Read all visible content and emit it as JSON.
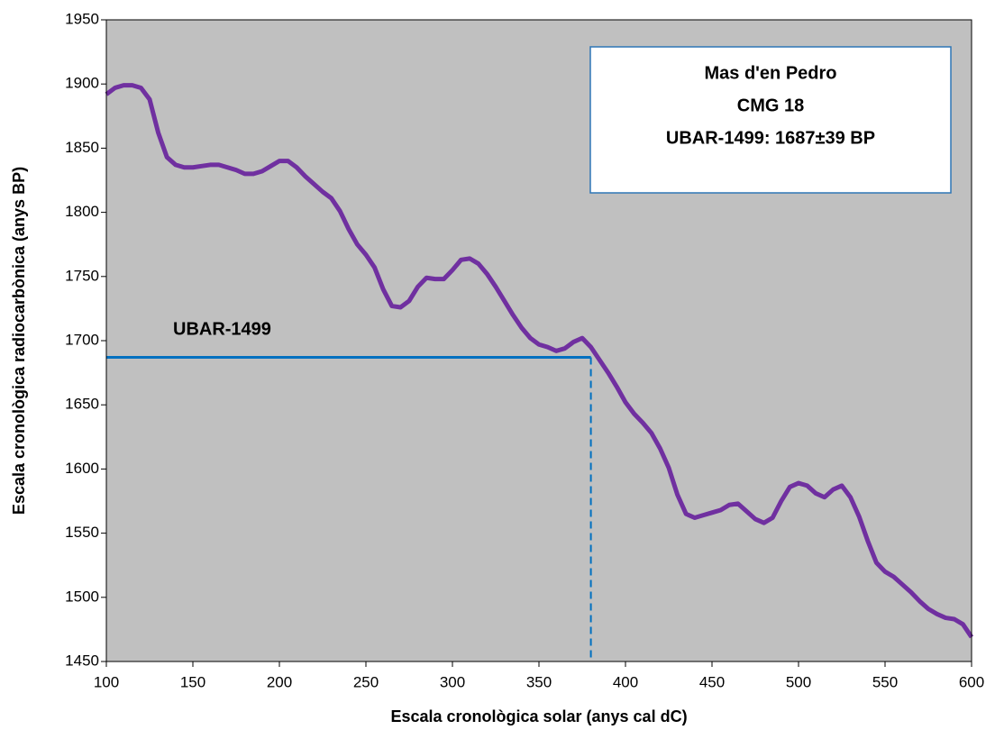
{
  "chart_data": {
    "type": "line",
    "annotation": [
      "Mas d'en Pedro",
      "CMG 18",
      "UBAR-1499: 1687±39 BP"
    ],
    "x_label": "Escala cronològica solar (anys cal dC)",
    "y_label": "Escala cronològica radiocarbònica (anys BP)",
    "reference": {
      "label": "UBAR-1499",
      "value": 1687,
      "x": 380,
      "color": "#0070c0"
    },
    "xlim": [
      100,
      600
    ],
    "xticks": [
      100,
      150,
      200,
      250,
      300,
      350,
      400,
      450,
      500,
      550,
      600
    ],
    "ylim": [
      1450,
      1950
    ],
    "yticks": [
      1450,
      1500,
      1550,
      1600,
      1650,
      1700,
      1750,
      1800,
      1850,
      1900,
      1950
    ],
    "background": "#c0c0c0",
    "x": [
      100,
      105,
      110,
      115,
      120,
      125,
      130,
      135,
      140,
      145,
      150,
      155,
      160,
      165,
      170,
      175,
      180,
      185,
      190,
      195,
      200,
      205,
      210,
      215,
      220,
      225,
      230,
      235,
      240,
      245,
      250,
      255,
      260,
      265,
      270,
      275,
      280,
      285,
      290,
      295,
      300,
      305,
      310,
      315,
      320,
      325,
      330,
      335,
      340,
      345,
      350,
      355,
      360,
      365,
      370,
      375,
      380,
      385,
      390,
      395,
      400,
      405,
      410,
      415,
      420,
      425,
      430,
      435,
      440,
      445,
      450,
      455,
      460,
      465,
      470,
      475,
      480,
      485,
      490,
      495,
      500,
      505,
      510,
      515,
      520,
      525,
      530,
      535,
      540,
      545,
      550,
      555,
      560,
      565,
      570,
      575,
      580,
      585,
      590,
      595,
      600
    ],
    "series": [
      {
        "color": "#7030a0",
        "values": [
          1892,
          1897,
          1899,
          1899,
          1897,
          1888,
          1862,
          1843,
          1837,
          1835,
          1835,
          1836,
          1837,
          1837,
          1835,
          1833,
          1830,
          1830,
          1832,
          1836,
          1840,
          1840,
          1835,
          1828,
          1822,
          1816,
          1811,
          1801,
          1787,
          1775,
          1767,
          1757,
          1740,
          1727,
          1726,
          1731,
          1742,
          1749,
          1748,
          1748,
          1755,
          1763,
          1764,
          1760,
          1752,
          1742,
          1731,
          1720,
          1710,
          1702,
          1697,
          1695,
          1692,
          1694,
          1699,
          1702,
          1695,
          1685,
          1675,
          1664,
          1652,
          1643,
          1636,
          1628,
          1616,
          1601,
          1580,
          1565,
          1562,
          1564,
          1566,
          1568,
          1572,
          1573,
          1567,
          1561,
          1558,
          1562,
          1575,
          1586,
          1589,
          1587,
          1581,
          1578,
          1584,
          1587,
          1578,
          1563,
          1544,
          1527,
          1520,
          1516,
          1510,
          1504,
          1497,
          1491,
          1487,
          1484,
          1483,
          1479,
          1469
        ]
      }
    ]
  }
}
